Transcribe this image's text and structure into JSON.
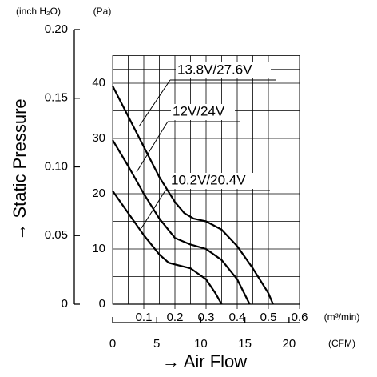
{
  "chart_data": {
    "type": "line",
    "y2_label": "(inch H₂O)",
    "y_label": "(Pa)",
    "y_title": "→ Static Pressure",
    "x_label": "(m³/min)",
    "x2_label": "(CFM)",
    "x_title": "→ Air Flow",
    "xlim": [
      0,
      0.6
    ],
    "xticks": [
      0.1,
      0.2,
      0.3,
      0.4,
      0.5,
      0.6
    ],
    "x2lim": [
      0,
      21.19
    ],
    "x2ticks": [
      0,
      5,
      10,
      15,
      20
    ],
    "ylim": [
      0,
      45
    ],
    "yticks": [
      0,
      10,
      20,
      30,
      40
    ],
    "y2lim": [
      0,
      0.2
    ],
    "y2ticks": [
      0,
      0.05,
      {
        "value": 0.1,
        "label": "0.10"
      },
      0.15,
      {
        "value": 0.2,
        "label": "0.20"
      }
    ],
    "grid": true,
    "series": [
      {
        "name": "13.8V/27.6V",
        "color": "#000000",
        "x": [
          0,
          0.05,
          0.1,
          0.15,
          0.2,
          0.23,
          0.26,
          0.3,
          0.35,
          0.4,
          0.45,
          0.5,
          0.515
        ],
        "values": [
          39.5,
          34,
          28.5,
          23,
          18.5,
          16.5,
          15.5,
          15,
          13.5,
          10.5,
          6.5,
          2,
          0
        ]
      },
      {
        "name": "12V/24V",
        "color": "#000000",
        "x": [
          0,
          0.05,
          0.1,
          0.15,
          0.2,
          0.25,
          0.3,
          0.35,
          0.4,
          0.44
        ],
        "values": [
          29.7,
          25,
          20,
          15.5,
          12,
          10.8,
          10,
          8,
          4.5,
          0
        ]
      },
      {
        "name": "10.2V/20.4V",
        "color": "#000000",
        "x": [
          0,
          0.05,
          0.1,
          0.15,
          0.18,
          0.2,
          0.25,
          0.3,
          0.33,
          0.35
        ],
        "values": [
          20.5,
          16.5,
          12.5,
          9,
          7.5,
          7.2,
          6.5,
          4.5,
          2,
          0
        ]
      }
    ]
  }
}
